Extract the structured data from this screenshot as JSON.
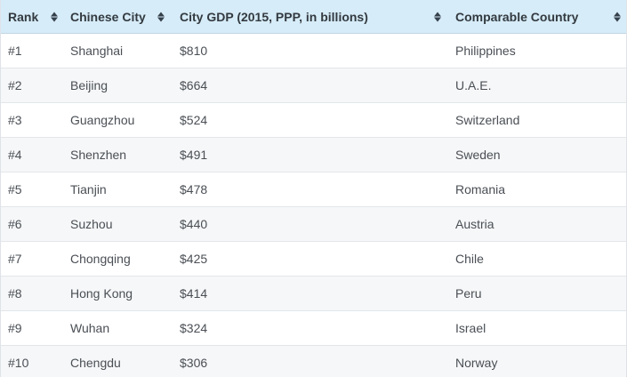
{
  "table": {
    "headers": [
      {
        "label": "Rank"
      },
      {
        "label": "Chinese City"
      },
      {
        "label": "City GDP (2015, PPP, in billions)"
      },
      {
        "label": "Comparable Country"
      }
    ],
    "sort_icon": "sort-arrows-icon",
    "rows": [
      {
        "rank": "#1",
        "city": "Shanghai",
        "gdp": "$810",
        "country": "Philippines"
      },
      {
        "rank": "#2",
        "city": "Beijing",
        "gdp": "$664",
        "country": "U.A.E."
      },
      {
        "rank": "#3",
        "city": "Guangzhou",
        "gdp": "$524",
        "country": "Switzerland"
      },
      {
        "rank": "#4",
        "city": "Shenzhen",
        "gdp": "$491",
        "country": "Sweden"
      },
      {
        "rank": "#5",
        "city": "Tianjin",
        "gdp": "$478",
        "country": "Romania"
      },
      {
        "rank": "#6",
        "city": "Suzhou",
        "gdp": "$440",
        "country": "Austria"
      },
      {
        "rank": "#7",
        "city": "Chongqing",
        "gdp": "$425",
        "country": "Chile"
      },
      {
        "rank": "#8",
        "city": "Hong Kong",
        "gdp": "$414",
        "country": "Peru"
      },
      {
        "rank": "#9",
        "city": "Wuhan",
        "gdp": "$324",
        "country": "Israel"
      },
      {
        "rank": "#10",
        "city": "Chengdu",
        "gdp": "$306",
        "country": "Norway"
      }
    ]
  },
  "colors": {
    "header_bg": "#d6ecf8",
    "row_alt_bg": "#f6f7f8",
    "text": "#4a4f55"
  }
}
